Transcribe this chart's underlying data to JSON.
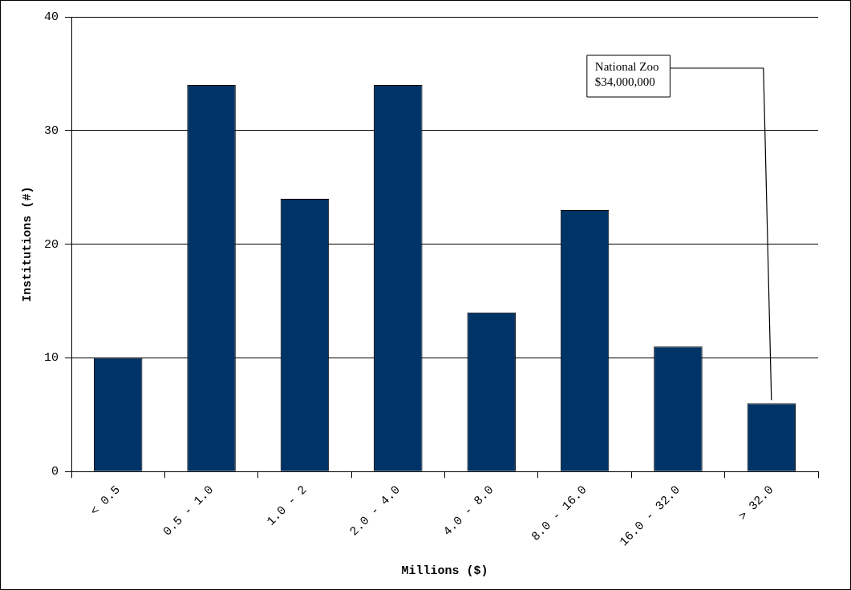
{
  "chart_data": {
    "type": "bar",
    "xlabel": "Millions ($)",
    "ylabel": "Institutions (#)",
    "categories": [
      "< 0.5",
      "0.5 - 1.0",
      "1.0 - 2",
      "2.0 - 4.0",
      "4.0 - 8.0",
      "8.0 - 16.0",
      "16.0 - 32.0",
      "> 32.0"
    ],
    "values": [
      10,
      34,
      24,
      34,
      14,
      23,
      11,
      6
    ],
    "color": "#003366",
    "ylim": [
      0,
      40
    ],
    "yticks": [
      0,
      10,
      20,
      30,
      40
    ],
    "grid": "y",
    "legend": false,
    "annotations": [
      {
        "text": "National Zoo\n$34,000,000",
        "x": "> 32.0",
        "y": 6
      }
    ]
  }
}
